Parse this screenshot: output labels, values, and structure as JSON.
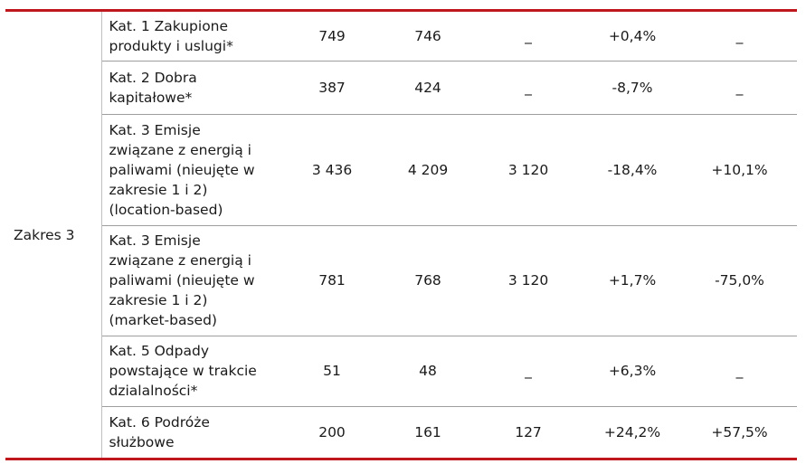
{
  "scope_label": "Zakres 3",
  "rows": [
    {
      "cat_lines": [
        "Kat. 1 Zakupione",
        "produkty i uslugi*"
      ],
      "c1": "749",
      "c2": "746",
      "c3": "_",
      "c4": "+0,4%",
      "c5": "_"
    },
    {
      "cat_lines": [
        "Kat. 2 Dobra",
        "kapitałowe*"
      ],
      "c1": "387",
      "c2": "424",
      "c3": "_",
      "c4": "-8,7%",
      "c5": "_"
    },
    {
      "cat_lines": [
        "Kat. 3 Emisje",
        "związane z energią i",
        "paliwami (nieujęte w",
        "zakresie 1 i 2)",
        "(location-based)"
      ],
      "c1": "3 436",
      "c2": "4 209",
      "c3": "3 120",
      "c4": "-18,4%",
      "c5": "+10,1%"
    },
    {
      "cat_lines": [
        "Kat. 3 Emisje",
        "związane z energią i",
        "paliwami (nieujęte w",
        "zakresie 1 i 2)",
        "(market-based)"
      ],
      "c1": "781",
      "c2": "768",
      "c3": "3 120",
      "c4": "+1,7%",
      "c5": "-75,0%"
    },
    {
      "cat_lines": [
        "Kat. 5 Odpady",
        "powstające w trakcie",
        "dzialalności*"
      ],
      "c1": "51",
      "c2": "48",
      "c3": "_",
      "c4": "+6,3%",
      "c5": "_"
    },
    {
      "cat_lines": [
        "Kat. 6 Podróże",
        "służbowe"
      ],
      "c1": "200",
      "c2": "161",
      "c3": "127",
      "c4": "+24,2%",
      "c5": "+57,5%"
    }
  ]
}
